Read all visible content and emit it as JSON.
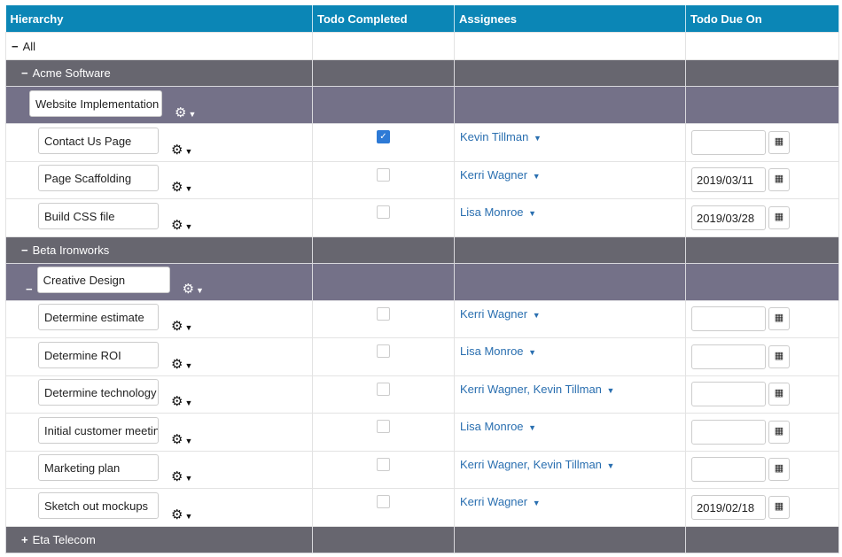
{
  "headers": [
    "Hierarchy",
    "Todo Completed",
    "Assignees",
    "Todo Due On"
  ],
  "all_label": "All",
  "clients": [
    {
      "name": "Acme Software",
      "expanded": true
    },
    {
      "name": "Beta Ironworks",
      "expanded": true
    },
    {
      "name": "Eta Telecom",
      "expanded": false
    }
  ],
  "projects": [
    "Website Implementation",
    "Creative Design"
  ],
  "tasks": [
    {
      "name": "Contact Us Page",
      "done": true,
      "assignees": "Kevin Tillman",
      "due": ""
    },
    {
      "name": "Page Scaffolding",
      "done": false,
      "assignees": "Kerri Wagner",
      "due": "2019/03/11"
    },
    {
      "name": "Build CSS file",
      "done": false,
      "assignees": "Lisa Monroe",
      "due": "2019/03/28"
    },
    {
      "name": "Determine estimate",
      "done": false,
      "assignees": "Kerri Wagner",
      "due": ""
    },
    {
      "name": "Determine ROI",
      "done": false,
      "assignees": "Lisa Monroe",
      "due": ""
    },
    {
      "name": "Determine technology",
      "done": false,
      "assignees": "Kerri Wagner, Kevin Tillman",
      "due": ""
    },
    {
      "name": "Initial customer meeting",
      "done": false,
      "assignees": "Lisa Monroe",
      "due": ""
    },
    {
      "name": "Marketing plan",
      "done": false,
      "assignees": "Kerri Wagner, Kevin Tillman",
      "due": ""
    },
    {
      "name": "Sketch out mockups",
      "done": false,
      "assignees": "Kerri Wagner",
      "due": "2019/02/18"
    }
  ],
  "icons": {
    "collapse": "minus-icon",
    "expand": "plus-icon",
    "gear": "gear-icon",
    "calendar": "calendar-icon"
  }
}
